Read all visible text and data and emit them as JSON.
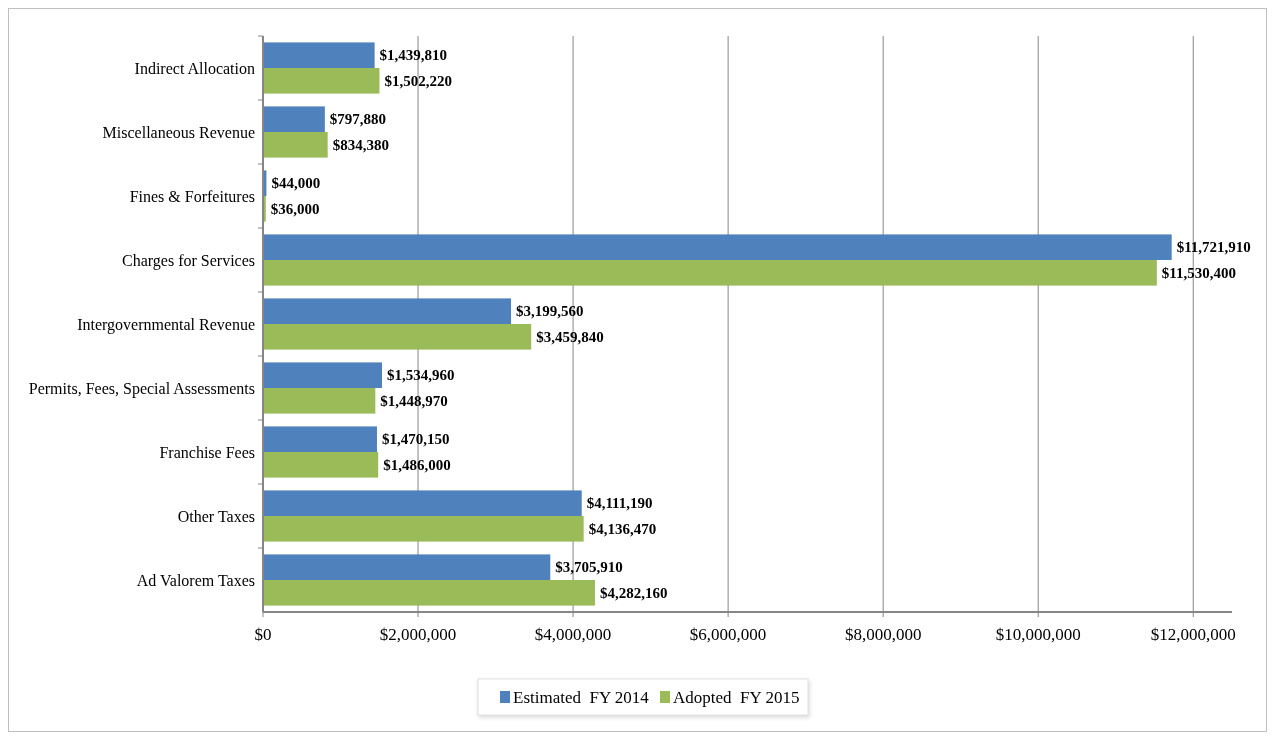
{
  "chart_data": {
    "type": "bar",
    "orientation": "horizontal",
    "categories": [
      "Indirect Allocation",
      "Miscellaneous Revenue",
      "Fines & Forfeitures",
      "Charges for Services",
      "Intergovernmental Revenue",
      "Permits, Fees, Special Assessments",
      "Franchise Fees",
      "Other Taxes",
      "Ad Valorem Taxes"
    ],
    "series": [
      {
        "name": "Estimated  FY 2014",
        "color": "#4f81bd",
        "values": [
          1439810,
          797880,
          44000,
          11721910,
          3199560,
          1534960,
          1470150,
          4111190,
          3705910
        ],
        "value_labels": [
          "$1,439,810",
          "$797,880",
          "$44,000",
          "$11,721,910",
          "$3,199,560",
          "$1,534,960",
          "$1,470,150",
          "$4,111,190",
          "$3,705,910"
        ]
      },
      {
        "name": "Adopted  FY 2015",
        "color": "#9bbb59",
        "values": [
          1502220,
          834380,
          36000,
          11530400,
          3459840,
          1448970,
          1486000,
          4136470,
          4282160
        ],
        "value_labels": [
          "$1,502,220",
          "$834,380",
          "$36,000",
          "$11,530,400",
          "$3,459,840",
          "$1,448,970",
          "$1,486,000",
          "$4,136,470",
          "$4,282,160"
        ]
      }
    ],
    "xlim": [
      0,
      12500000
    ],
    "xticks": [
      {
        "value": 0,
        "label": "$0"
      },
      {
        "value": 2000000,
        "label": "$2,000,000"
      },
      {
        "value": 4000000,
        "label": "$4,000,000"
      },
      {
        "value": 6000000,
        "label": "$6,000,000"
      },
      {
        "value": 8000000,
        "label": "$8,000,000"
      },
      {
        "value": 10000000,
        "label": "$10,000,000"
      },
      {
        "value": 12000000,
        "label": "$12,000,000"
      }
    ],
    "grid": "x",
    "legend": "bottom"
  }
}
